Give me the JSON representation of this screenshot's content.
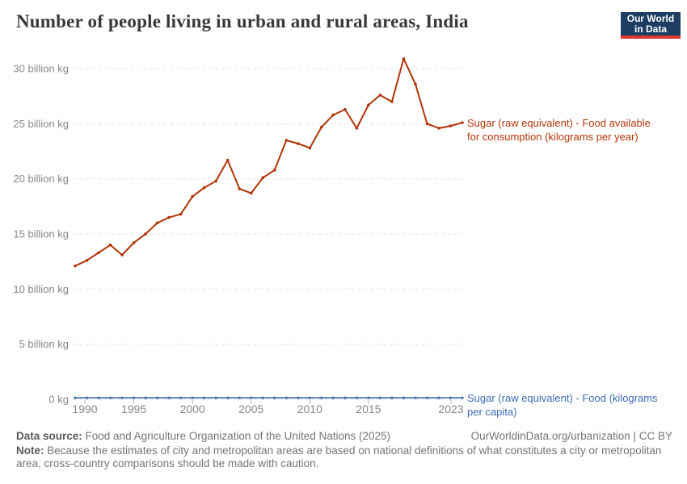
{
  "header": {
    "title": "Number of people living in urban and rural areas, India",
    "logo": {
      "line1": "Our World",
      "line2": "in Data"
    }
  },
  "chart_data": {
    "type": "line",
    "title": "Number of people living in urban and rural areas, India",
    "xlabel": "",
    "ylabel": "",
    "ylim": [
      0,
      31.5
    ],
    "grid": "horizontal-dashed",
    "legend_position": "right-of-line-end",
    "years": [
      1990,
      1991,
      1992,
      1993,
      1994,
      1995,
      1996,
      1997,
      1998,
      1999,
      2000,
      2001,
      2002,
      2003,
      2004,
      2005,
      2006,
      2007,
      2008,
      2009,
      2010,
      2011,
      2012,
      2013,
      2014,
      2015,
      2016,
      2017,
      2018,
      2019,
      2020,
      2021,
      2022,
      2023
    ],
    "series": [
      {
        "name": "Sugar (raw equivalent) - Food available for consumption (kilograms per year)",
        "label_lines": [
          "Sugar (raw equivalent) - Food available",
          "for consumption (kilograms per year)"
        ],
        "color": "#b13507",
        "unit": "billion kg",
        "values": [
          12.1,
          12.6,
          13.3,
          14.0,
          13.1,
          14.2,
          15.0,
          16.0,
          16.5,
          16.8,
          18.4,
          19.2,
          19.8,
          21.7,
          19.1,
          18.7,
          20.1,
          20.8,
          23.5,
          23.2,
          22.8,
          24.7,
          25.8,
          26.3,
          24.6,
          26.7,
          27.6,
          27.0,
          30.9,
          28.6,
          25.0,
          24.6,
          24.8,
          25.1
        ]
      },
      {
        "name": "Sugar (raw equivalent) - Food (kilograms per capita)",
        "label_lines": [
          "Sugar (raw equivalent) - Food (kilograms",
          "per capita)"
        ],
        "color": "#3d6bb3",
        "unit": "kilograms per capita",
        "flat_near_zero": true
      }
    ],
    "yticks": [
      {
        "v": 0,
        "label": "0 kg"
      },
      {
        "v": 5,
        "label": "5 billion kg"
      },
      {
        "v": 10,
        "label": "10 billion kg"
      },
      {
        "v": 15,
        "label": "15 billion kg"
      },
      {
        "v": 20,
        "label": "20 billion kg"
      },
      {
        "v": 25,
        "label": "25 billion kg"
      },
      {
        "v": 30,
        "label": "30 billion kg"
      }
    ],
    "xticks": [
      1990,
      1995,
      2000,
      2005,
      2010,
      2015,
      2023
    ]
  },
  "footer": {
    "data_source_label": "Data source:",
    "data_source_text": " Food and Agriculture Organization of the United Nations (2025)",
    "link_text": "OurWorldinData.org/urbanization | CC BY",
    "note_label": "Note:",
    "note_text": " Because the estimates of city and metropolitan areas are based on national definitions of what constitutes a city or metropolitan area, cross-country comparisons should be made with caution."
  },
  "colors": {
    "series_total": "#b13507",
    "series_per_capita": "#3d6bb3",
    "gridline": "#e3e3e3",
    "axis_text": "#878787",
    "logo_bg": "#1d3d63",
    "logo_accent": "#e0362d"
  }
}
